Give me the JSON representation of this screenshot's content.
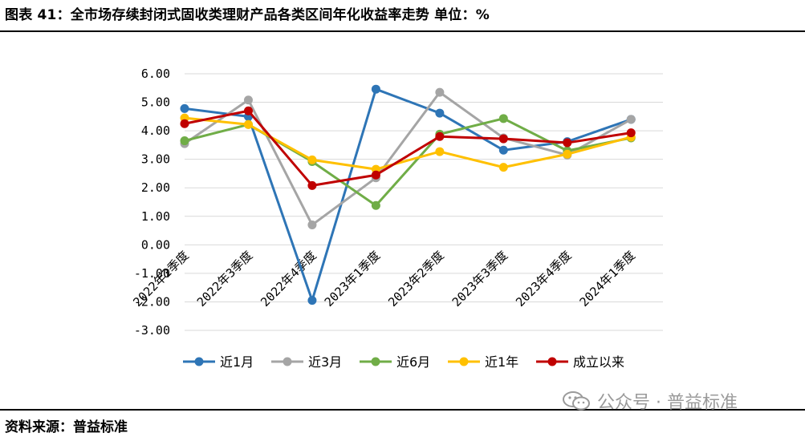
{
  "header": {
    "title": "图表 41：全市场存续封闭式固收类理财产品各类区间年化收益率走势    单位：%"
  },
  "footer": {
    "source": "资料来源：普益标准",
    "watermark": "公众号 · 普益标准",
    "watermark_icon": "wechat-icon"
  },
  "chart_data": {
    "type": "line",
    "categories": [
      "2022年2季度",
      "2022年3季度",
      "2022年4季度",
      "2023年1季度",
      "2023年2季度",
      "2023年3季度",
      "2023年4季度",
      "2024年1季度"
    ],
    "ylim": [
      -3,
      6
    ],
    "yticks": [
      "6.00",
      "5.00",
      "4.00",
      "3.00",
      "2.00",
      "1.00",
      "0.00",
      "-1.00",
      "-2.00",
      "-3.00"
    ],
    "grid": true,
    "legend_position": "bottom",
    "series": [
      {
        "name": "近1月",
        "color": "#2e75b6",
        "values": [
          4.78,
          4.5,
          -1.95,
          5.46,
          4.62,
          3.32,
          3.62,
          4.4
        ]
      },
      {
        "name": "近3月",
        "color": "#a5a5a5",
        "values": [
          3.55,
          5.08,
          0.7,
          2.35,
          5.35,
          3.75,
          3.15,
          4.4
        ]
      },
      {
        "name": "近6月",
        "color": "#70ad47",
        "values": [
          3.65,
          4.22,
          2.92,
          1.38,
          3.88,
          4.43,
          3.3,
          3.75
        ]
      },
      {
        "name": "近1年",
        "color": "#ffc000",
        "values": [
          4.45,
          4.22,
          2.98,
          2.65,
          3.27,
          2.72,
          3.18,
          3.78
        ]
      },
      {
        "name": "成立以来",
        "color": "#c00000",
        "values": [
          4.25,
          4.7,
          2.08,
          2.45,
          3.8,
          3.72,
          3.58,
          3.93
        ]
      }
    ]
  }
}
